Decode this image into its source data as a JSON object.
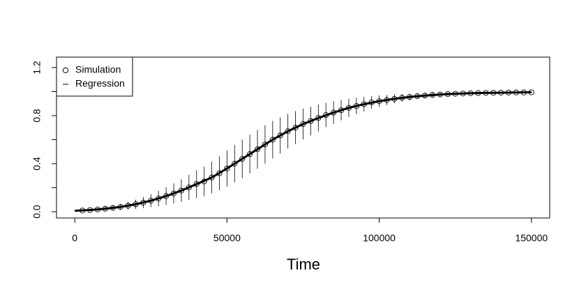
{
  "chart_data": {
    "type": "errorbar-line",
    "x_label": "Time",
    "xlim": [
      -6000,
      156000
    ],
    "ylim": [
      -0.052,
      1.287
    ],
    "xticks": [
      0,
      50000,
      100000,
      150000
    ],
    "yticks": [
      {
        "value": 0,
        "label": "0.0"
      },
      {
        "value": 0.2
      },
      0.4,
      {
        "value": 0.6
      },
      0.8,
      {
        "value": 1.0
      },
      1.2
    ],
    "legend": "top-left",
    "series": [
      {
        "name": "Simulation",
        "color": "#000000",
        "marker": "circle",
        "x": [
          2500,
          5000,
          7500,
          10000,
          12500,
          15000,
          17500,
          20000,
          22500,
          25000,
          27500,
          30000,
          32500,
          35000,
          37500,
          40000,
          42500,
          45000,
          47500,
          50000,
          52500,
          55000,
          57500,
          60000,
          62500,
          65000,
          67500,
          70000,
          72500,
          75000,
          77500,
          80000,
          82500,
          85000,
          87500,
          90000,
          92500,
          95000,
          97500,
          100000,
          102500,
          105000,
          107500,
          110000,
          112500,
          115000,
          117500,
          120000,
          122500,
          125000,
          127500,
          130000,
          132500,
          135000,
          137500,
          140000,
          142500,
          145000,
          147500,
          150000
        ],
        "values": [
          0.01,
          0.014,
          0.019,
          0.025,
          0.032,
          0.04,
          0.05,
          0.062,
          0.076,
          0.092,
          0.11,
          0.13,
          0.152,
          0.176,
          0.202,
          0.23,
          0.252,
          0.285,
          0.32,
          0.36,
          0.4,
          0.44,
          0.48,
          0.52,
          0.56,
          0.6,
          0.635,
          0.67,
          0.7,
          0.73,
          0.755,
          0.78,
          0.805,
          0.825,
          0.845,
          0.865,
          0.88,
          0.895,
          0.91,
          0.92,
          0.93,
          0.94,
          0.948,
          0.955,
          0.962,
          0.967,
          0.972,
          0.976,
          0.979,
          0.982,
          0.984,
          0.986,
          0.988,
          0.989,
          0.99,
          0.991,
          0.992,
          0.993,
          0.993,
          0.994
        ],
        "errors": [
          0.006,
          0.009,
          0.012,
          0.016,
          0.02,
          0.025,
          0.031,
          0.038,
          0.046,
          0.054,
          0.064,
          0.074,
          0.084,
          0.094,
          0.105,
          0.115,
          0.123,
          0.132,
          0.141,
          0.15,
          0.156,
          0.16,
          0.162,
          0.162,
          0.16,
          0.156,
          0.151,
          0.144,
          0.137,
          0.128,
          0.12,
          0.112,
          0.102,
          0.094,
          0.085,
          0.076,
          0.069,
          0.061,
          0.053,
          0.048,
          0.042,
          0.037,
          0.032,
          0.028,
          0.024,
          0.021,
          0.018,
          0.015,
          0.013,
          0.011,
          0.01,
          0.009,
          0.008,
          0.007,
          0.006,
          0.006,
          0.005,
          0.005,
          0.005,
          0.004
        ]
      },
      {
        "name": "Regression",
        "color": "#000000",
        "marker": "line",
        "x": [
          0,
          5000,
          10000,
          15000,
          20000,
          25000,
          30000,
          35000,
          40000,
          45000,
          50000,
          55000,
          60000,
          65000,
          70000,
          75000,
          80000,
          85000,
          90000,
          95000,
          100000,
          105000,
          110000,
          115000,
          120000,
          125000,
          130000,
          135000,
          140000,
          145000,
          150000
        ],
        "values": [
          0.008,
          0.014,
          0.025,
          0.04,
          0.062,
          0.092,
          0.13,
          0.176,
          0.23,
          0.285,
          0.36,
          0.44,
          0.52,
          0.6,
          0.67,
          0.73,
          0.78,
          0.825,
          0.865,
          0.895,
          0.92,
          0.94,
          0.955,
          0.967,
          0.976,
          0.982,
          0.986,
          0.989,
          0.991,
          0.993,
          0.994
        ]
      }
    ]
  }
}
